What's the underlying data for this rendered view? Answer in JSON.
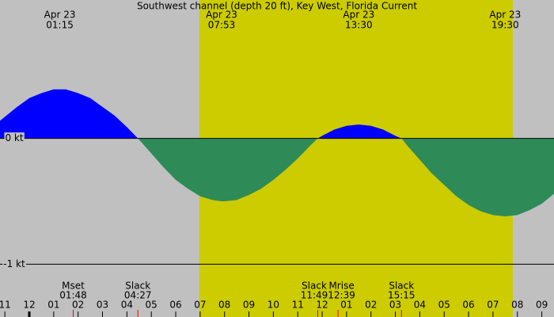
{
  "chart_data": {
    "type": "area",
    "title": "Southwest channel (depth 20 ft), Key West, Florida Current",
    "x": [
      -1.2,
      -0.5,
      0,
      0.5,
      1,
      1.25,
      1.5,
      2,
      2.5,
      3,
      3.5,
      4,
      4.45,
      4.5,
      5,
      5.5,
      6,
      6.5,
      7,
      7.5,
      7.88,
      8,
      8.5,
      9,
      9.5,
      10,
      10.5,
      11,
      11.5,
      11.82,
      12,
      12.5,
      13,
      13.5,
      14,
      14.5,
      15,
      15.25,
      15.5,
      16,
      16.5,
      17,
      17.5,
      18,
      18.5,
      19,
      19.5,
      20,
      20.5,
      21,
      21.5
    ],
    "series": [
      {
        "color": "#0000ff",
        "negative_color": "#2e8b57",
        "values": [
          0.14,
          0.25,
          0.32,
          0.36,
          0.39,
          0.39,
          0.39,
          0.36,
          0.32,
          0.25,
          0.18,
          0.09,
          0,
          -0.01,
          -0.12,
          -0.23,
          -0.33,
          -0.4,
          -0.46,
          -0.49,
          -0.5,
          -0.5,
          -0.49,
          -0.45,
          -0.4,
          -0.33,
          -0.25,
          -0.16,
          -0.06,
          0,
          0.02,
          0.07,
          0.1,
          0.11,
          0.1,
          0.07,
          0.02,
          0,
          -0.06,
          -0.17,
          -0.28,
          -0.37,
          -0.46,
          -0.53,
          -0.58,
          -0.61,
          -0.62,
          -0.61,
          -0.57,
          -0.52,
          -0.44
        ]
      }
    ],
    "xlim": [
      -1.2,
      21.5
    ],
    "ylim": [
      -1.42,
      1.1
    ],
    "yticks": [
      {
        "value": 0,
        "label": "0 kt"
      },
      {
        "value": -1,
        "label": "-1 kt"
      }
    ],
    "xticks": [
      {
        "value": -1,
        "label": "11"
      },
      {
        "value": 0,
        "label": "12"
      },
      {
        "value": 1,
        "label": "01"
      },
      {
        "value": 2,
        "label": "02"
      },
      {
        "value": 3,
        "label": "03"
      },
      {
        "value": 4,
        "label": "04"
      },
      {
        "value": 5,
        "label": "05"
      },
      {
        "value": 6,
        "label": "06"
      },
      {
        "value": 7,
        "label": "07"
      },
      {
        "value": 8,
        "label": "08"
      },
      {
        "value": 9,
        "label": "09"
      },
      {
        "value": 10,
        "label": "10"
      },
      {
        "value": 11,
        "label": "11"
      },
      {
        "value": 12,
        "label": "12"
      },
      {
        "value": 13,
        "label": "01"
      },
      {
        "value": 14,
        "label": "02"
      },
      {
        "value": 15,
        "label": "03"
      },
      {
        "value": 16,
        "label": "04"
      },
      {
        "value": 17,
        "label": "05"
      },
      {
        "value": 18,
        "label": "06"
      },
      {
        "value": 19,
        "label": "07"
      },
      {
        "value": 20,
        "label": "08"
      },
      {
        "value": 21,
        "label": "09"
      }
    ],
    "daylight": [
      6.97,
      19.81
    ],
    "background_color": "#c0c0c0",
    "daylight_color": "#cccc00",
    "top_labels": [
      {
        "date": "Apr 23",
        "time": "01:15",
        "x": 1.25
      },
      {
        "date": "Apr 23",
        "time": "07:53",
        "x": 7.88
      },
      {
        "date": "Apr 23",
        "time": "13:30",
        "x": 13.5
      },
      {
        "date": "Apr 23",
        "time": "19:30",
        "x": 19.5
      }
    ],
    "events": [
      {
        "name": "Mset",
        "time": "01:48",
        "x": 1.8
      },
      {
        "name": "Slack",
        "time": "04:27",
        "x": 4.45
      },
      {
        "name": "Slack",
        "time": "11:49",
        "x": 11.82
      },
      {
        "name": "Mrise",
        "time": "12:39",
        "x": 12.65
      },
      {
        "name": "Slack",
        "time": "15:15",
        "x": 15.25
      }
    ]
  }
}
